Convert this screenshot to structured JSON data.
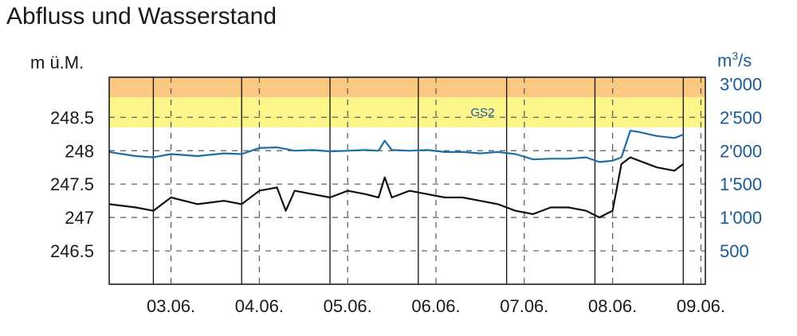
{
  "chart_data": {
    "type": "line",
    "title": "Abfluss und Wasserstand",
    "y_left_label": "m ü.M.",
    "y_right_label_base": "m",
    "y_right_label_sup": "3",
    "y_right_label_tail": "/s",
    "y_left_ticks": [
      "246.5",
      "247",
      "247.5",
      "248",
      "248.5"
    ],
    "y_left_tick_values": [
      246.5,
      247.0,
      247.5,
      248.0,
      248.5
    ],
    "y_left_range": [
      246.0,
      249.1
    ],
    "y_right_ticks": [
      "500",
      "1'000",
      "1'500",
      "2'000",
      "2'500",
      "3'000"
    ],
    "y_right_tick_values": [
      500,
      1000,
      1500,
      2000,
      2500,
      3000
    ],
    "y_right_range": [
      0,
      3100
    ],
    "x_range": [
      2.5,
      9.25
    ],
    "x_tick_labels": [
      "03.06.",
      "04.06.",
      "05.06.",
      "06.06.",
      "07.06.",
      "08.06.",
      "09.06."
    ],
    "x_tick_values": [
      3.2,
      4.2,
      5.2,
      6.2,
      7.2,
      8.2,
      9.2
    ],
    "bands": [
      {
        "name": "",
        "from": 248.35,
        "to": 248.8,
        "color": "#fbf58a"
      },
      {
        "name": "",
        "from": 248.8,
        "to": 249.1,
        "color": "#fbc882"
      }
    ],
    "band_label": "GS2",
    "grid": true,
    "series": [
      {
        "color": "#1c6fa6",
        "axis": "right",
        "x": [
          2.5,
          2.8,
          3.0,
          3.2,
          3.5,
          3.8,
          4.0,
          4.2,
          4.4,
          4.6,
          4.8,
          5.0,
          5.2,
          5.4,
          5.55,
          5.62,
          5.7,
          5.9,
          6.1,
          6.3,
          6.5,
          6.7,
          6.9,
          7.1,
          7.3,
          7.5,
          7.7,
          7.9,
          8.05,
          8.2,
          8.3,
          8.4,
          8.5,
          8.7,
          8.9,
          9.0
        ],
        "y": [
          1980,
          1920,
          1900,
          1950,
          1920,
          1960,
          1950,
          2040,
          2050,
          2000,
          2010,
          1990,
          2000,
          2010,
          2000,
          2150,
          2010,
          2000,
          2010,
          1980,
          1980,
          1960,
          1980,
          1950,
          1870,
          1880,
          1880,
          1900,
          1830,
          1850,
          1900,
          2300,
          2280,
          2220,
          2190,
          2240
        ]
      },
      {
        "color": "#111111",
        "axis": "left",
        "x": [
          2.5,
          2.8,
          3.0,
          3.2,
          3.5,
          3.8,
          4.0,
          4.2,
          4.4,
          4.5,
          4.6,
          4.8,
          5.0,
          5.2,
          5.4,
          5.55,
          5.62,
          5.7,
          5.9,
          6.1,
          6.3,
          6.5,
          6.7,
          6.9,
          7.1,
          7.3,
          7.5,
          7.7,
          7.9,
          8.05,
          8.2,
          8.3,
          8.4,
          8.5,
          8.7,
          8.9,
          9.0
        ],
        "y": [
          247.2,
          247.15,
          247.1,
          247.3,
          247.2,
          247.25,
          247.2,
          247.4,
          247.45,
          247.1,
          247.4,
          247.35,
          247.3,
          247.4,
          247.35,
          247.3,
          247.6,
          247.3,
          247.4,
          247.35,
          247.3,
          247.3,
          247.25,
          247.2,
          247.1,
          247.05,
          247.15,
          247.15,
          247.1,
          247.0,
          247.1,
          247.8,
          247.9,
          247.85,
          247.75,
          247.7,
          247.8
        ]
      }
    ]
  }
}
